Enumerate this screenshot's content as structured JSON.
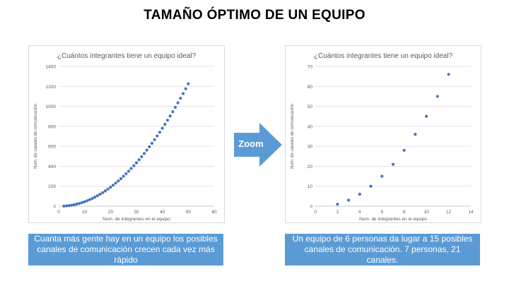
{
  "slide": {
    "title": "TAMAÑO ÓPTIMO DE UN EQUIPO"
  },
  "zoom": {
    "label": "Zoom"
  },
  "captions": {
    "left": "Cuanta más gente hay en un equipo los posibles canales de comunicación crecen cada vez más rápido",
    "right": "Un equipo de 6 personas da lugar a 15 posibles canales de comunicación. 7 personas, 21 canales."
  },
  "colors": {
    "marker": "#4472c4",
    "caption_bg": "#5b9bd5",
    "grid": "#d9d9d9"
  },
  "chart_data": [
    {
      "type": "scatter",
      "title": "¿Cuántos integrantes tiene un equipo ideal?",
      "xlabel": "Num. de integrantes en el equipo",
      "ylabel": "Num. de canales de comunicación",
      "xlim": [
        0,
        60
      ],
      "ylim": [
        0,
        1400
      ],
      "xticks": [
        0,
        10,
        20,
        30,
        40,
        50,
        60
      ],
      "yticks": [
        0,
        200,
        400,
        600,
        800,
        1000,
        1200,
        1400
      ],
      "grid": true,
      "x": [
        2,
        3,
        4,
        5,
        6,
        7,
        8,
        9,
        10,
        11,
        12,
        13,
        14,
        15,
        16,
        17,
        18,
        19,
        20,
        21,
        22,
        23,
        24,
        25,
        26,
        27,
        28,
        29,
        30,
        31,
        32,
        33,
        34,
        35,
        36,
        37,
        38,
        39,
        40,
        41,
        42,
        43,
        44,
        45,
        46,
        47,
        48,
        49,
        50
      ],
      "y": [
        1,
        3,
        6,
        10,
        15,
        21,
        28,
        36,
        45,
        55,
        66,
        78,
        91,
        105,
        120,
        136,
        153,
        171,
        190,
        210,
        231,
        253,
        276,
        300,
        325,
        351,
        378,
        406,
        435,
        465,
        496,
        528,
        561,
        595,
        630,
        666,
        703,
        741,
        780,
        820,
        861,
        903,
        946,
        990,
        1035,
        1081,
        1128,
        1176,
        1225
      ]
    },
    {
      "type": "scatter",
      "title": "¿Cuántos integrantes tiene un equipo ideal?",
      "xlabel": "Num. de integrantes en el equipo",
      "ylabel": "Num. de canales de comunicación",
      "xlim": [
        0,
        14
      ],
      "ylim": [
        0,
        70
      ],
      "xticks": [
        0,
        2,
        4,
        6,
        8,
        10,
        12,
        14
      ],
      "yticks": [
        0,
        10,
        20,
        30,
        40,
        50,
        60,
        70
      ],
      "grid": true,
      "x": [
        2,
        3,
        4,
        5,
        6,
        7,
        8,
        9,
        10,
        11,
        12
      ],
      "y": [
        1,
        3,
        6,
        10,
        15,
        21,
        28,
        36,
        45,
        55,
        66
      ]
    }
  ]
}
